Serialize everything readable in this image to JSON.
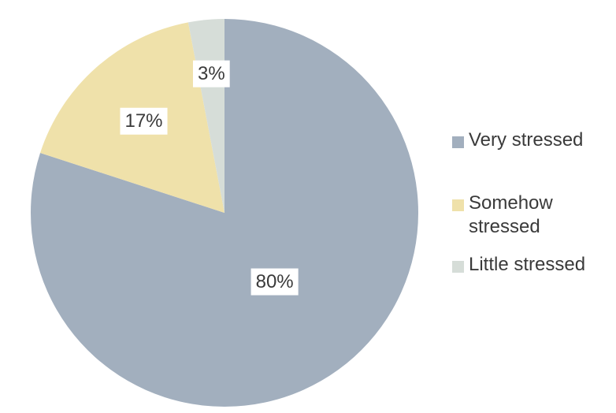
{
  "chart_data": {
    "type": "pie",
    "title": "",
    "categories": [
      "Very stressed",
      "Somehow stressed",
      "Little stressed"
    ],
    "values": [
      80,
      17,
      3
    ],
    "value_labels": [
      "80%",
      "17%",
      "3%"
    ],
    "colors": [
      "#a2afbe",
      "#efe1aa",
      "#d6ddd8"
    ],
    "start_angle_deg": 0,
    "direction": "clockwise",
    "legend_position": "right"
  }
}
